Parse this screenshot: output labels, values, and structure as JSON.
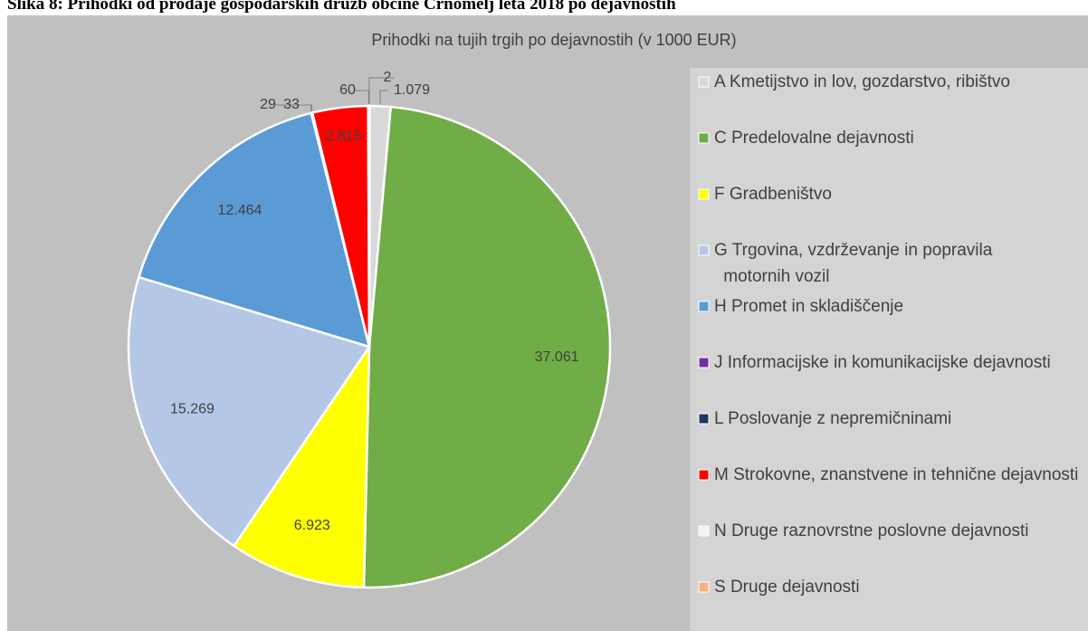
{
  "caption": "Slika 8: Prihodki od prodaje gospodarskih družb občine Črnomelj leta 2018 po dejavnostih",
  "chart_data": {
    "type": "pie",
    "title": "Prihodki na tujih trgih po dejavnostih (v 1000 EUR)",
    "categories": [
      "A Kmetijstvo in lov, gozdarstvo, ribištvo",
      "C Predelovalne dejavnosti",
      "F Gradbeništvo",
      "G Trgovina, vzdrževanje in popravila motornih vozil",
      "H Promet in skladiščenje",
      "J Informacijske in komunikacijske dejavnosti",
      "L Poslovanje z nepremičninami",
      "M Strokovne, znanstvene in tehnične dejavnosti",
      "N Druge raznovrstne poslovne dejavnosti",
      "S Druge dejavnosti"
    ],
    "values": [
      1079,
      37061,
      6923,
      15269,
      12464,
      29,
      33,
      2815,
      60,
      2
    ],
    "value_labels": [
      "1.079",
      "37.061",
      "6.923",
      "15.269",
      "12.464",
      "29",
      "33",
      "2.815",
      "60",
      "2"
    ],
    "colors": [
      "#d9d9d9",
      "#70ad47",
      "#ffff00",
      "#b4c7e7",
      "#5b9bd5",
      "#7030a0",
      "#1f3864",
      "#ff0000",
      "#f2f2f2",
      "#f4b183"
    ],
    "legend": "right"
  }
}
